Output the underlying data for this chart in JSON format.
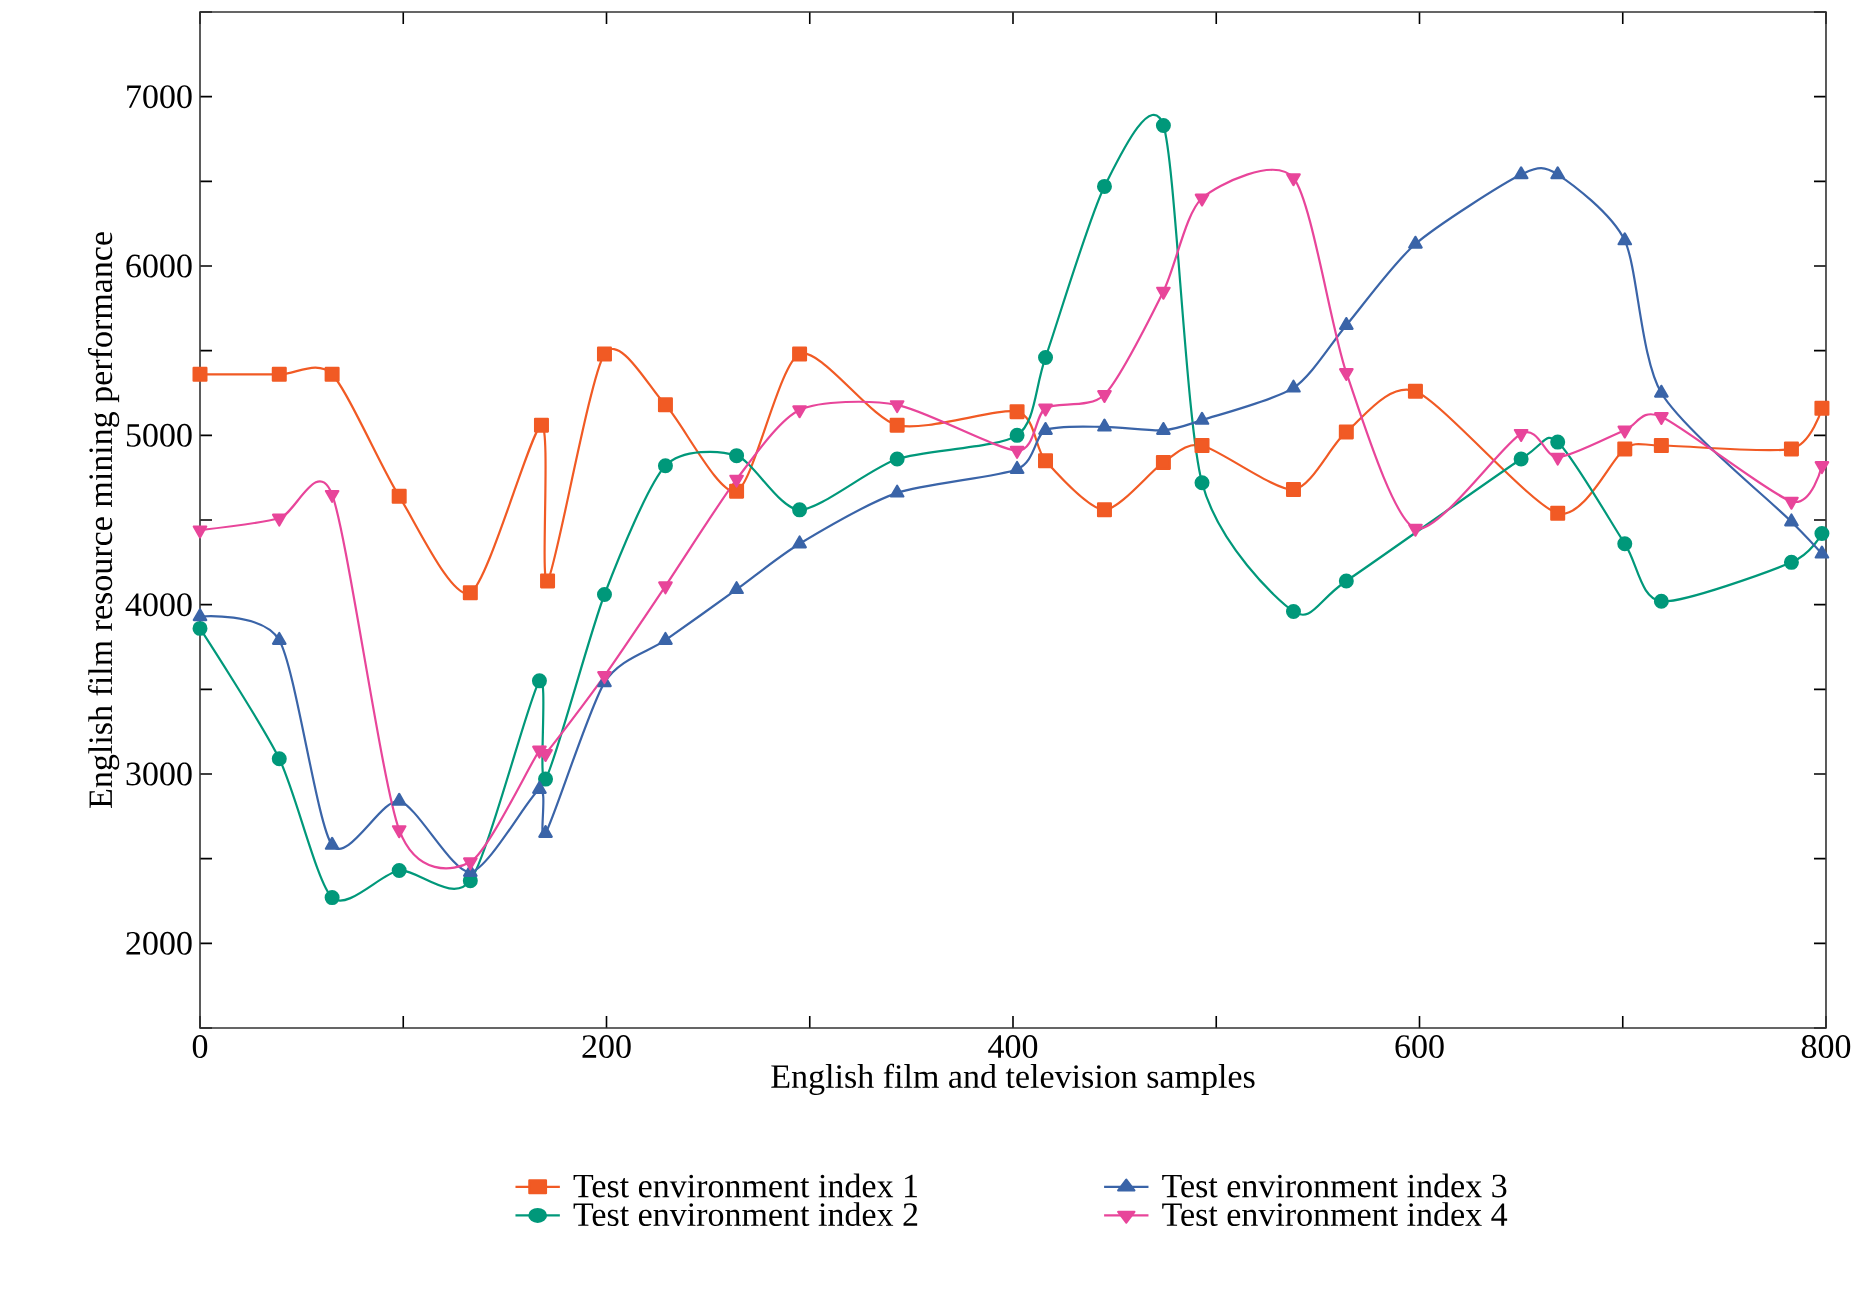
{
  "chart_data": {
    "type": "line",
    "xlabel": "English film and television samples",
    "ylabel": "English film resource mining performance",
    "xlim": [
      0,
      800
    ],
    "ylim": [
      1500,
      7500
    ],
    "xticks": [
      0,
      {
        "value": 100,
        "label": null
      },
      200,
      {
        "value": 300,
        "label": null
      },
      400,
      {
        "value": 500,
        "label": null
      },
      600,
      {
        "value": 700,
        "label": null
      },
      800
    ],
    "yticks": [
      {
        "value": 1500,
        "label": null
      },
      2000,
      {
        "value": 2500,
        "label": null
      },
      3000,
      {
        "value": 3500,
        "label": null
      },
      4000,
      {
        "value": 4500,
        "label": null
      },
      5000,
      {
        "value": 5500,
        "label": null
      },
      6000,
      {
        "value": 6500,
        "label": null
      },
      7000,
      {
        "value": 7500,
        "label": null
      }
    ],
    "grid": false,
    "legend": "bottom",
    "line_style": "solid",
    "series": [
      {
        "name": "Test environment index 1",
        "color": "#f15a24",
        "marker": "square",
        "x": [
          0,
          39,
          65,
          98,
          133,
          168,
          171,
          199,
          229,
          264,
          295,
          343,
          402,
          416,
          445,
          474,
          493,
          538,
          564,
          598,
          668,
          701,
          719,
          783,
          798
        ],
        "values": [
          5360,
          5360,
          5360,
          4640,
          4070,
          5060,
          4140,
          5480,
          5180,
          4670,
          5480,
          5060,
          5140,
          4850,
          4560,
          4840,
          4940,
          4680,
          5020,
          5260,
          4540,
          4920,
          4940,
          4920,
          5160
        ]
      },
      {
        "name": "Test environment index 2",
        "color": "#00987a",
        "marker": "circle",
        "x": [
          0,
          39,
          65,
          98,
          133,
          167,
          170,
          199,
          229,
          264,
          295,
          343,
          402,
          416,
          445,
          474,
          493,
          538,
          564,
          650,
          668,
          701,
          719,
          783,
          798
        ],
        "values": [
          3860,
          3090,
          2270,
          2430,
          2370,
          3550,
          2970,
          4060,
          4820,
          4880,
          4560,
          4860,
          5000,
          5460,
          6470,
          6830,
          4720,
          3960,
          4140,
          4860,
          4960,
          4360,
          4020,
          4250,
          4420
        ]
      },
      {
        "name": "Test environment index 3",
        "color": "#3a64a8",
        "marker": "triangle",
        "x": [
          0,
          39,
          65,
          98,
          133,
          167,
          170,
          199,
          229,
          264,
          295,
          343,
          402,
          416,
          445,
          474,
          493,
          538,
          564,
          598,
          650,
          668,
          701,
          719,
          783,
          798
        ],
        "values": [
          3930,
          3790,
          2580,
          2840,
          2420,
          2910,
          2650,
          3540,
          3790,
          4090,
          4360,
          4660,
          4800,
          5030,
          5050,
          5030,
          5090,
          5280,
          5650,
          6130,
          6540,
          6540,
          6150,
          5250,
          4490,
          4300
        ]
      },
      {
        "name": "Test environment index 4",
        "color": "#e8459a",
        "marker": "triangle down",
        "x": [
          0,
          39,
          65,
          98,
          133,
          167,
          170,
          199,
          229,
          264,
          295,
          343,
          402,
          416,
          445,
          474,
          493,
          538,
          564,
          598,
          650,
          668,
          701,
          719,
          783,
          798
        ],
        "values": [
          4440,
          4510,
          4650,
          2670,
          2480,
          3140,
          3120,
          3580,
          4110,
          4740,
          5150,
          5180,
          4910,
          5160,
          5240,
          5850,
          6400,
          6520,
          5370,
          4450,
          5010,
          4870,
          5030,
          5110,
          4610,
          4820
        ]
      }
    ]
  }
}
